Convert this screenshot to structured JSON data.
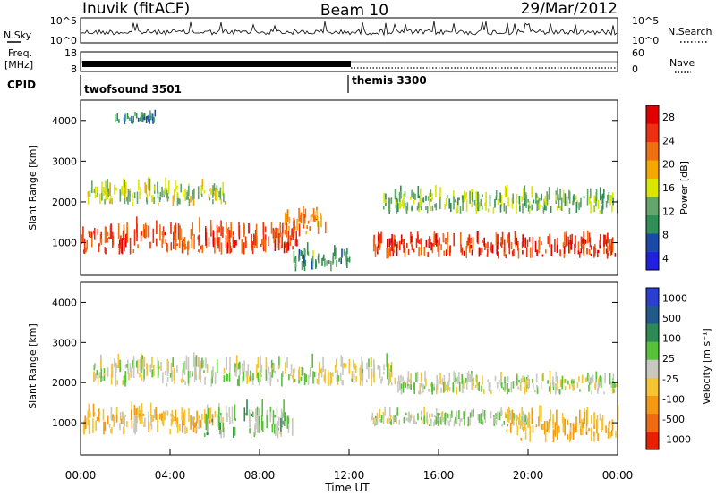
{
  "header": {
    "title": "Inuvik (fitACF)",
    "beam": "Beam 10",
    "date": "29/Mar/2012"
  },
  "strip": {
    "nsky_label": "N.Sky",
    "nsky_ticks": [
      "10^5",
      "10^0"
    ],
    "nsearch_label": "N.Search",
    "nsearch_ticks": [
      "10^5",
      "10^0"
    ],
    "freq_label": "Freq.",
    "freq_unit": "[MHz]",
    "freq_ticks": [
      "18",
      "8"
    ],
    "nave_label": "Nave",
    "nave_ticks": [
      "60",
      "0"
    ],
    "cpid_label": "CPID",
    "cpid_modes": [
      "twofsound 3501",
      "themis 3300"
    ]
  },
  "colors": {
    "power_scale": [
      "#2020e0",
      "#1a4aa8",
      "#2e8f57",
      "#63a56a",
      "#d8e600",
      "#f5a800",
      "#f07010",
      "#ee3010",
      "#e00000"
    ],
    "velocity_scale": [
      "#2a3ed0",
      "#1f5a8a",
      "#2e8a55",
      "#57c238",
      "#c8c8c0",
      "#f4c431",
      "#f59a10",
      "#f06b0f",
      "#e82000"
    ]
  },
  "chart_data": [
    {
      "type": "heatmap",
      "title": "",
      "xlabel": "",
      "ylabel": "Slant Range [km]",
      "xlim": [
        "00:00",
        "24:00"
      ],
      "ylim": [
        200,
        4500
      ],
      "y_ticks": [
        "4000",
        "3000",
        "2000",
        "1000"
      ],
      "colorbar": {
        "label": "Power [dB]",
        "ticks": [
          "28",
          "24",
          "20",
          "16",
          "12",
          "8",
          "4"
        ],
        "range": [
          0,
          30
        ]
      },
      "bands": [
        {
          "start": 0.0,
          "end": 9.8,
          "range_lo": 700,
          "range_hi": 1500,
          "value": 24
        },
        {
          "start": 0.2,
          "end": 6.5,
          "range_lo": 1900,
          "range_hi": 2500,
          "value": 14
        },
        {
          "start": 9.0,
          "end": 11.0,
          "range_lo": 1200,
          "range_hi": 1800,
          "value": 20
        },
        {
          "start": 13.0,
          "end": 24.0,
          "range_lo": 600,
          "range_hi": 1200,
          "value": 25
        },
        {
          "start": 13.5,
          "end": 24.0,
          "range_lo": 1700,
          "range_hi": 2300,
          "value": 12
        },
        {
          "start": 1.5,
          "end": 3.3,
          "range_lo": 3900,
          "range_hi": 4200,
          "value": 9
        },
        {
          "start": 9.5,
          "end": 12.0,
          "range_lo": 300,
          "range_hi": 900,
          "value": 10
        }
      ]
    },
    {
      "type": "heatmap",
      "title": "",
      "xlabel": "Time UT",
      "ylabel": "Slant Range [km]",
      "x_ticks": [
        "00:00",
        "04:00",
        "08:00",
        "12:00",
        "16:00",
        "20:00",
        "00:00"
      ],
      "xlim": [
        "00:00",
        "24:00"
      ],
      "ylim": [
        200,
        4500
      ],
      "y_ticks": [
        "4000",
        "3000",
        "2000",
        "1000"
      ],
      "colorbar": {
        "label": "Velocity [m s⁻¹]",
        "ticks": [
          "1000",
          "500",
          "100",
          "25",
          "-25",
          "-100",
          "-500",
          "-1000"
        ],
        "range": [
          -1200,
          1200
        ]
      },
      "bands": [
        {
          "start": 0.0,
          "end": 6.0,
          "range_lo": 700,
          "range_hi": 1400,
          "value": -300
        },
        {
          "start": 5.5,
          "end": 9.5,
          "range_lo": 600,
          "range_hi": 1500,
          "value": 150
        },
        {
          "start": 0.5,
          "end": 14.0,
          "range_lo": 1900,
          "range_hi": 2600,
          "value": 0
        },
        {
          "start": 13.0,
          "end": 20.0,
          "range_lo": 900,
          "range_hi": 1300,
          "value": 100
        },
        {
          "start": 19.0,
          "end": 24.0,
          "range_lo": 500,
          "range_hi": 1300,
          "value": -400
        },
        {
          "start": 14.0,
          "end": 24.0,
          "range_lo": 1700,
          "range_hi": 2200,
          "value": 0
        }
      ]
    }
  ]
}
